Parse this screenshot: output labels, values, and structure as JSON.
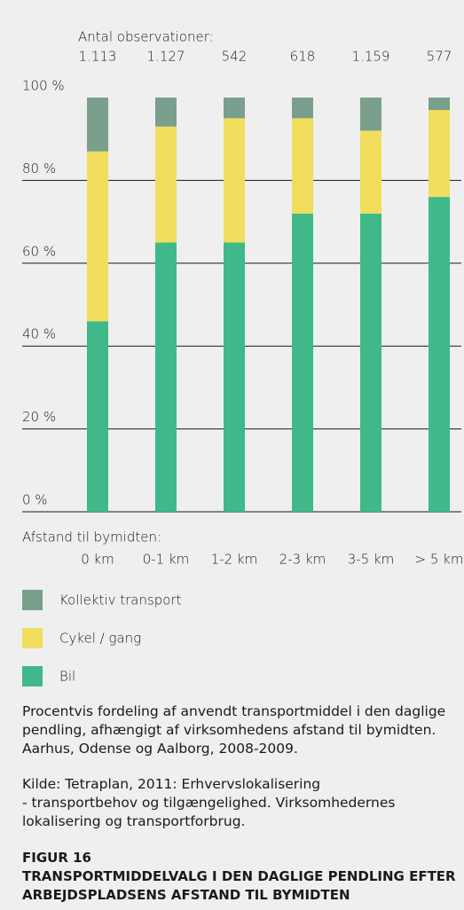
{
  "chart_data": {
    "type": "stacked_bar",
    "observations_label": "Antal observationer:",
    "observations": [
      "1.113",
      "1.127",
      "542",
      "618",
      "1.159",
      "577"
    ],
    "x_label": "Afstand til bymidten:",
    "categories": [
      "0 km",
      "0-1 km",
      "1-2 km",
      "2-3 km",
      "3-5 km",
      "> 5 km"
    ],
    "series": [
      {
        "name": "Kollektiv transport",
        "color": "#7a9f8d",
        "values": [
          13,
          7,
          5,
          5,
          8,
          3
        ]
      },
      {
        "name": "Cykel / gang",
        "color": "#f0de5c",
        "values": [
          41,
          28,
          30,
          23,
          20,
          21
        ]
      },
      {
        "name": "Bil",
        "color": "#3fb98a",
        "values": [
          46,
          65,
          65,
          72,
          72,
          76
        ]
      }
    ],
    "ylim": [
      0,
      100
    ],
    "yticks": [
      {
        "value": 0,
        "label": "0 %"
      },
      {
        "value": 20,
        "label": "20 %"
      },
      {
        "value": 40,
        "label": "40 %"
      },
      {
        "value": 60,
        "label": "60 %"
      },
      {
        "value": 80,
        "label": "80 %"
      },
      {
        "value": 100,
        "label": "100 %"
      }
    ],
    "grid": true,
    "caption": "Procentvis fordeling af anvendt transportmiddel i den daglige pendling, afhængigt af virksomhedens afstand til bymidten. Aarhus, Odense og Aalborg, 2008-2009.",
    "source": [
      "Kilde: Tetraplan, 2011: Erhvervslokalisering",
      "- transportbehov og tilgængelighed. Virksomhedernes lokalisering og transportforbrug."
    ],
    "figure_label": "FIGUR 16",
    "title": "TRANSPORTMIDDELVALG I DEN DAGLIGE PENDLING EFTER ARBEJDSPLADSENS AFSTAND TIL BYMIDTEN"
  }
}
